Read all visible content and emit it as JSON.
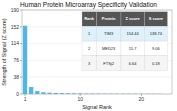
{
  "chart_data": {
    "type": "bar",
    "title": "Human Protein Microarray Specificity Validation",
    "x_label": "Signal Rank",
    "y_label": "Strength of Signal (Z score)",
    "x": [
      1,
      2,
      3,
      4,
      5,
      6,
      7,
      8,
      9,
      10,
      11,
      12,
      13,
      14,
      15,
      16,
      17,
      18,
      19,
      20,
      21,
      22,
      23
    ],
    "values": [
      154.44,
      15.7,
      6.64,
      4.0,
      3.0,
      2.5,
      2.0,
      1.8,
      1.6,
      1.4,
      1.2,
      1.1,
      1.0,
      0.9,
      0.8,
      0.75,
      0.7,
      0.65,
      0.6,
      0.55,
      0.5,
      0.45,
      0.4
    ],
    "color": "#4db8e8",
    "xlim": [
      0.5,
      25
    ],
    "xticks": [
      1,
      10,
      20
    ],
    "ylim": [
      0,
      190
    ],
    "yticks": [
      0,
      38,
      76,
      114,
      152,
      190
    ],
    "table": [
      [
        "Rank",
        "Protein",
        "Z score",
        "S score"
      ],
      [
        "1",
        "TIM3",
        "154.44",
        "138.74"
      ],
      [
        "2",
        "MED23",
        "15.7",
        "9.06"
      ],
      [
        "3",
        "FTSj2",
        "6.64",
        "0.18"
      ]
    ]
  }
}
